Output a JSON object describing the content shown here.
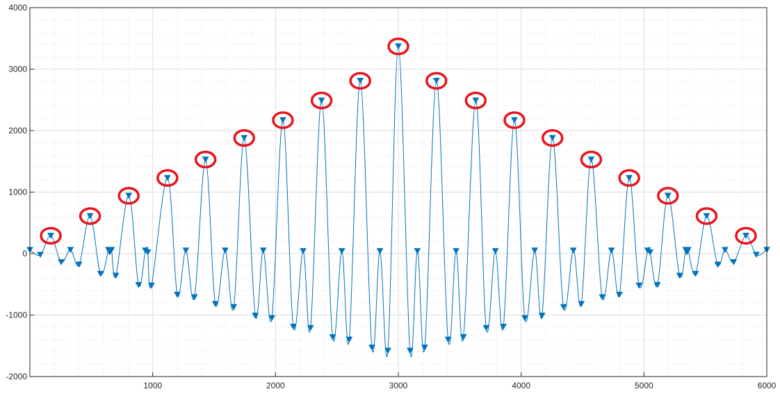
{
  "chart_data": {
    "type": "line",
    "title": "",
    "xlabel": "",
    "ylabel": "",
    "xlim": [
      0,
      6000
    ],
    "ylim": [
      -2000,
      4000
    ],
    "x_ticks": [
      1000,
      2000,
      3000,
      4000,
      5000,
      6000
    ],
    "x_tick_labels": [
      "1000",
      "2000",
      "3000",
      "4000",
      "5000",
      "6000"
    ],
    "y_ticks": [
      -2000,
      -1000,
      0,
      1000,
      2000,
      3000,
      4000
    ],
    "y_tick_labels": [
      "-2000",
      "-1000",
      "0",
      "1000",
      "2000",
      "3000",
      "4000"
    ],
    "grid": "major and minor",
    "series": [
      {
        "color": "#0072bd",
        "marker": "downward-triangle",
        "points": [
          [
            0,
            60
          ],
          [
            85,
            -20
          ],
          [
            170,
            290
          ],
          [
            255,
            -140
          ],
          [
            330,
            60
          ],
          [
            400,
            -180
          ],
          [
            490,
            610
          ],
          [
            575,
            -330
          ],
          [
            640,
            60
          ],
          [
            650,
            20
          ],
          [
            665,
            60
          ],
          [
            700,
            -360
          ],
          [
            805,
            940
          ],
          [
            885,
            -510
          ],
          [
            940,
            50
          ],
          [
            960,
            20
          ],
          [
            990,
            -520
          ],
          [
            1120,
            1230
          ],
          [
            1200,
            -670
          ],
          [
            1270,
            50
          ],
          [
            1340,
            -710
          ],
          [
            1430,
            1530
          ],
          [
            1510,
            -820
          ],
          [
            1590,
            50
          ],
          [
            1660,
            -870
          ],
          [
            1745,
            1880
          ],
          [
            1835,
            -1010
          ],
          [
            1900,
            50
          ],
          [
            1970,
            -1050
          ],
          [
            2060,
            2170
          ],
          [
            2145,
            -1190
          ],
          [
            2225,
            40
          ],
          [
            2285,
            -1210
          ],
          [
            2375,
            2490
          ],
          [
            2465,
            -1360
          ],
          [
            2540,
            40
          ],
          [
            2600,
            -1400
          ],
          [
            2690,
            2810
          ],
          [
            2785,
            -1530
          ],
          [
            2850,
            40
          ],
          [
            2915,
            -1580
          ],
          [
            3000,
            3370
          ],
          [
            3095,
            -1580
          ],
          [
            3155,
            40
          ],
          [
            3215,
            -1530
          ],
          [
            3310,
            2810
          ],
          [
            3405,
            -1400
          ],
          [
            3470,
            40
          ],
          [
            3530,
            -1360
          ],
          [
            3630,
            2490
          ],
          [
            3715,
            -1210
          ],
          [
            3790,
            40
          ],
          [
            3855,
            -1190
          ],
          [
            3945,
            2170
          ],
          [
            4030,
            -1050
          ],
          [
            4110,
            50
          ],
          [
            4170,
            -1010
          ],
          [
            4255,
            1880
          ],
          [
            4345,
            -870
          ],
          [
            4425,
            50
          ],
          [
            4490,
            -820
          ],
          [
            4570,
            1530
          ],
          [
            4660,
            -710
          ],
          [
            4735,
            50
          ],
          [
            4800,
            -670
          ],
          [
            4880,
            1230
          ],
          [
            4960,
            -520
          ],
          [
            5030,
            50
          ],
          [
            5050,
            20
          ],
          [
            5110,
            -510
          ],
          [
            5195,
            940
          ],
          [
            5290,
            -360
          ],
          [
            5340,
            60
          ],
          [
            5350,
            20
          ],
          [
            5360,
            60
          ],
          [
            5420,
            -330
          ],
          [
            5510,
            610
          ],
          [
            5600,
            -180
          ],
          [
            5660,
            60
          ],
          [
            5730,
            -140
          ],
          [
            5830,
            290
          ],
          [
            5915,
            -20
          ],
          [
            6000,
            60
          ]
        ]
      }
    ],
    "highlighted_peaks": [
      [
        170,
        290
      ],
      [
        490,
        610
      ],
      [
        805,
        940
      ],
      [
        1120,
        1230
      ],
      [
        1430,
        1530
      ],
      [
        1745,
        1880
      ],
      [
        2060,
        2170
      ],
      [
        2375,
        2490
      ],
      [
        2690,
        2810
      ],
      [
        3000,
        3370
      ],
      [
        3310,
        2810
      ],
      [
        3630,
        2490
      ],
      [
        3945,
        2170
      ],
      [
        4255,
        1880
      ],
      [
        4570,
        1530
      ],
      [
        4880,
        1230
      ],
      [
        5195,
        940
      ],
      [
        5510,
        610
      ],
      [
        5830,
        290
      ]
    ],
    "highlight_color": "#e8141c"
  }
}
